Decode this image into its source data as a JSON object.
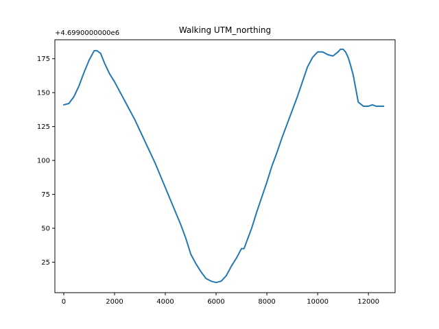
{
  "chart_data": {
    "type": "line",
    "title": "Walking UTM_northing",
    "y_offset_text": "+4.6990000000e6",
    "xlabel": "",
    "ylabel": "",
    "xlim": [
      -350,
      13050
    ],
    "ylim": [
      2.5,
      189
    ],
    "x_ticks": [
      0,
      2000,
      4000,
      6000,
      8000,
      10000,
      12000
    ],
    "y_ticks": [
      25,
      50,
      75,
      100,
      125,
      150,
      175
    ],
    "grid": false,
    "legend": "none",
    "series": [
      {
        "color": "#1f77b4",
        "x": [
          0,
          200,
          400,
          600,
          800,
          1000,
          1200,
          1300,
          1450,
          1600,
          1800,
          2000,
          2200,
          2400,
          2600,
          2800,
          3000,
          3200,
          3400,
          3600,
          3800,
          4000,
          4200,
          4400,
          4600,
          4800,
          5000,
          5200,
          5400,
          5600,
          5800,
          6000,
          6200,
          6400,
          6600,
          6800,
          7000,
          7100,
          7200,
          7400,
          7600,
          7800,
          8000,
          8200,
          8400,
          8600,
          8800,
          9000,
          9200,
          9400,
          9600,
          9800,
          10000,
          10200,
          10400,
          10600,
          10800,
          10900,
          11000,
          11100,
          11200,
          11300,
          11400,
          11500,
          11600,
          11800,
          12000,
          12150,
          12300,
          12450,
          12600
        ],
        "y": [
          141,
          142,
          147,
          155,
          165,
          174,
          181,
          181,
          179,
          172,
          164,
          158,
          151,
          144,
          137,
          130,
          122,
          114,
          106,
          98,
          89,
          80,
          71,
          62,
          53,
          43,
          31,
          24,
          18,
          13,
          11,
          10,
          11,
          15,
          22,
          28,
          35,
          35,
          40,
          50,
          62,
          73,
          84,
          96,
          106,
          117,
          127,
          137,
          147,
          158,
          169,
          176,
          180,
          180,
          178,
          177,
          180,
          182,
          182,
          180,
          176,
          170,
          163,
          153,
          143,
          140,
          140,
          141,
          140,
          140,
          140
        ]
      }
    ]
  }
}
